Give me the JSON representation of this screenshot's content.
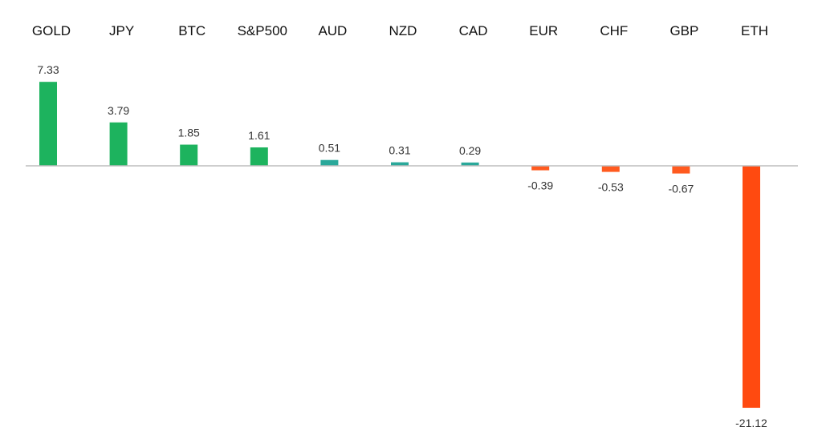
{
  "chart_data": {
    "type": "bar",
    "categories": [
      "GOLD",
      "JPY",
      "BTC",
      "S&P500",
      "AUD",
      "NZD",
      "CAD",
      "EUR",
      "CHF",
      "GBP",
      "ETH"
    ],
    "values": [
      7.33,
      3.79,
      1.85,
      1.61,
      0.51,
      0.31,
      0.29,
      -0.39,
      -0.53,
      -0.67,
      -21.12
    ],
    "value_labels": [
      "7.33",
      "3.79",
      "1.85",
      "1.61",
      "0.51",
      "0.31",
      "0.29",
      "-0.39",
      "-0.53",
      "-0.67",
      "-21.12"
    ],
    "colors": [
      "#1db35e",
      "#1db35e",
      "#1db35e",
      "#1db35e",
      "#2aa89a",
      "#2aa89a",
      "#2aa89a",
      "#ff5a1f",
      "#ff5a1f",
      "#ff5a1f",
      "#ff4a10"
    ],
    "category_label_position": "top",
    "title": "",
    "xlabel": "",
    "ylabel": "",
    "ylim": [
      -21.12,
      7.33
    ],
    "grid": false,
    "legend": "none"
  }
}
